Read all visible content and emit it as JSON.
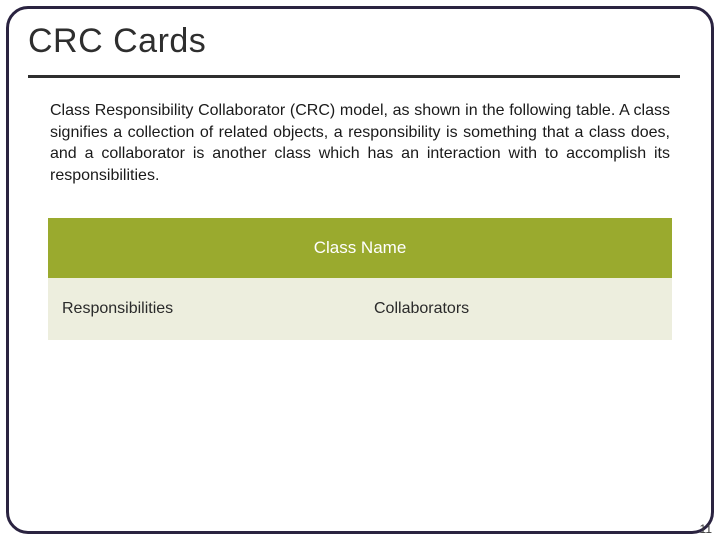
{
  "title": "CRC Cards",
  "body": "Class Responsibility Collaborator (CRC) model, as shown in the following table. A class signifies a collection of related objects, a responsibility is something that a class does, and a collaborator is another class which has an interaction with to accomplish its responsibilities.",
  "table": {
    "header": "Class Name",
    "left_label": "Responsibilities",
    "right_label": "Collaborators",
    "header_bg": "#9aaa2e",
    "row_bg": "#edeede",
    "blank_bg": "#ffffff",
    "text_color": "#2a2a2a",
    "header_text_color": "#ffffff"
  },
  "page_number": "11",
  "colors": {
    "frame": "#2a2340",
    "rule": "#2e2e2e"
  }
}
